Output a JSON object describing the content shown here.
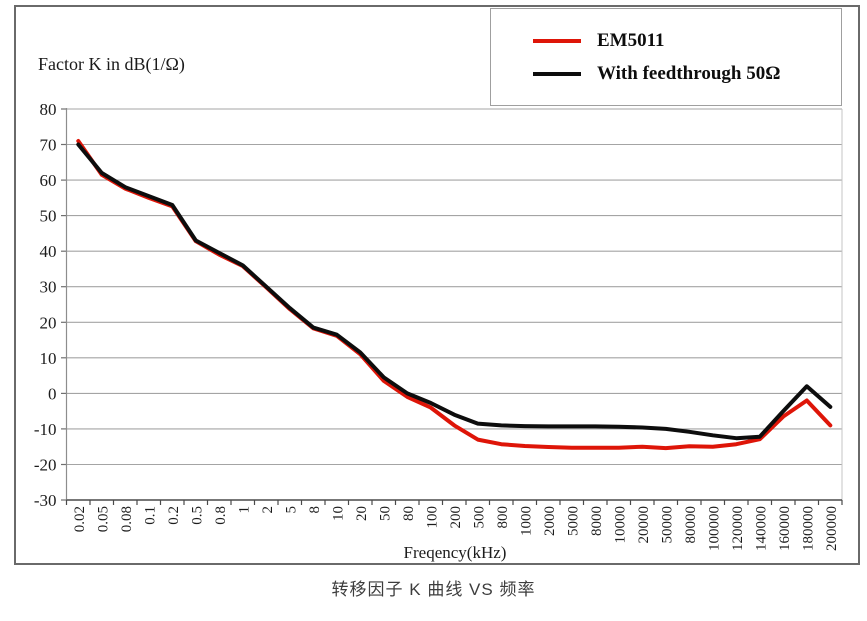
{
  "caption": "转移因子 K 曲线 VS 频率",
  "legend": {
    "items": [
      {
        "label": "EM5011",
        "color": "#de1508"
      },
      {
        "label": "With feedthrough 50Ω",
        "color": "#0d0d0d"
      }
    ]
  },
  "chart_data": {
    "type": "line",
    "title": "",
    "ylabel": "Factor K in dB(1/Ω)",
    "xlabel": "Freqency(kHz)",
    "ylim": [
      -30,
      80
    ],
    "yticks": [
      80,
      70,
      60,
      50,
      40,
      30,
      20,
      10,
      0,
      -10,
      -20,
      -30
    ],
    "grid": true,
    "legend_position": "top-right",
    "categories": [
      "0.02",
      "0.05",
      "0.08",
      "0.1",
      "0.2",
      "0.5",
      "0.8",
      "1",
      "2",
      "5",
      "8",
      "10",
      "20",
      "50",
      "80",
      "100",
      "200",
      "500",
      "800",
      "1000",
      "2000",
      "5000",
      "8000",
      "10000",
      "20000",
      "50000",
      "80000",
      "100000",
      "120000",
      "140000",
      "160000",
      "180000",
      "200000"
    ],
    "series": [
      {
        "name": "EM5011",
        "color": "#de1508",
        "values": [
          71,
          61.5,
          57.6,
          55,
          52.6,
          42.8,
          39,
          35.8,
          29.8,
          23.7,
          18.3,
          16.2,
          11,
          3.5,
          -1,
          -4,
          -9,
          -13,
          -14.3,
          -14.8,
          -15.1,
          -15.3,
          -15.3,
          -15.3,
          -15,
          -15.4,
          -14.9,
          -15,
          -14.3,
          -12.9,
          -6.5,
          -2,
          -9
        ]
      },
      {
        "name": "With feedthrough 50Ω",
        "color": "#0d0d0d",
        "values": [
          70,
          62,
          58,
          55.5,
          53,
          43,
          39.5,
          36,
          30,
          24,
          18.5,
          16.5,
          11.5,
          4.5,
          0,
          -2.7,
          -6,
          -8.5,
          -9,
          -9.2,
          -9.3,
          -9.3,
          -9.3,
          -9.4,
          -9.6,
          -10,
          -10.8,
          -11.8,
          -12.6,
          -12.2,
          -5,
          2,
          -3.8
        ]
      }
    ]
  }
}
